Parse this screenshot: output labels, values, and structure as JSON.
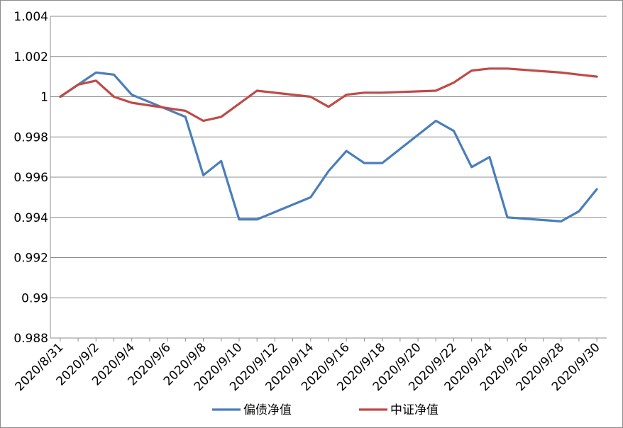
{
  "chart_data": {
    "type": "line",
    "title": "",
    "xlabel": "",
    "ylabel": "",
    "ylim": [
      0.988,
      1.004
    ],
    "y_ticks": [
      "0.988",
      "0.99",
      "0.992",
      "0.994",
      "0.996",
      "0.998",
      "1",
      "1.002",
      "1.004"
    ],
    "x_ticks": [
      "2020/8/31",
      "2020/9/2",
      "2020/9/4",
      "2020/9/6",
      "2020/9/8",
      "2020/9/10",
      "2020/9/12",
      "2020/9/14",
      "2020/9/16",
      "2020/9/18",
      "2020/9/20",
      "2020/9/22",
      "2020/9/24",
      "2020/9/26",
      "2020/9/28",
      "2020/9/30"
    ],
    "grid": "horizontal",
    "legend_position": "bottom",
    "series": [
      {
        "name": "偏债净值",
        "color": "#4a7ebb",
        "points": [
          [
            "2020/8/31",
            1.0
          ],
          [
            "2020/9/1",
            1.0006
          ],
          [
            "2020/9/2",
            1.0012
          ],
          [
            "2020/9/3",
            1.0011
          ],
          [
            "2020/9/4",
            1.0001
          ],
          [
            "2020/9/7",
            0.999
          ],
          [
            "2020/9/8",
            0.9961
          ],
          [
            "2020/9/9",
            0.9968
          ],
          [
            "2020/9/10",
            0.9939
          ],
          [
            "2020/9/11",
            0.9939
          ],
          [
            "2020/9/14",
            0.995
          ],
          [
            "2020/9/15",
            0.9963
          ],
          [
            "2020/9/16",
            0.9973
          ],
          [
            "2020/9/17",
            0.9967
          ],
          [
            "2020/9/18",
            0.9967
          ],
          [
            "2020/9/21",
            0.9988
          ],
          [
            "2020/9/22",
            0.9983
          ],
          [
            "2020/9/23",
            0.9965
          ],
          [
            "2020/9/24",
            0.997
          ],
          [
            "2020/9/25",
            0.994
          ],
          [
            "2020/9/28",
            0.9938
          ],
          [
            "2020/9/29",
            0.9943
          ],
          [
            "2020/9/30",
            0.9954
          ]
        ]
      },
      {
        "name": "中证净值",
        "color": "#be4b48",
        "points": [
          [
            "2020/8/31",
            1.0
          ],
          [
            "2020/9/1",
            1.0006
          ],
          [
            "2020/9/2",
            1.0008
          ],
          [
            "2020/9/3",
            1.0
          ],
          [
            "2020/9/4",
            0.9997
          ],
          [
            "2020/9/7",
            0.9993
          ],
          [
            "2020/9/8",
            0.9988
          ],
          [
            "2020/9/9",
            0.999
          ],
          [
            "2020/9/11",
            1.0003
          ],
          [
            "2020/9/14",
            1.0
          ],
          [
            "2020/9/15",
            0.9995
          ],
          [
            "2020/9/16",
            1.0001
          ],
          [
            "2020/9/17",
            1.0002
          ],
          [
            "2020/9/18",
            1.0002
          ],
          [
            "2020/9/21",
            1.0003
          ],
          [
            "2020/9/22",
            1.0007
          ],
          [
            "2020/9/23",
            1.0013
          ],
          [
            "2020/9/24",
            1.0014
          ],
          [
            "2020/9/25",
            1.0014
          ],
          [
            "2020/9/28",
            1.0012
          ],
          [
            "2020/9/29",
            1.0011
          ],
          [
            "2020/9/30",
            1.001
          ]
        ]
      }
    ]
  }
}
